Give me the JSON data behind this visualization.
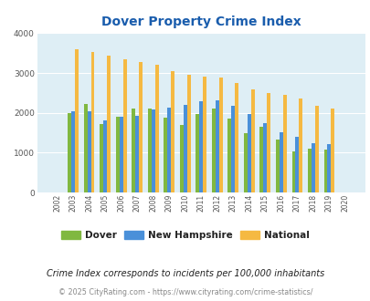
{
  "title": "Dover Property Crime Index",
  "years": [
    2002,
    2003,
    2004,
    2005,
    2006,
    2007,
    2008,
    2009,
    2010,
    2011,
    2012,
    2013,
    2014,
    2015,
    2016,
    2017,
    2018,
    2019,
    2020
  ],
  "dover": [
    0,
    2000,
    2220,
    1720,
    1900,
    2100,
    2100,
    1880,
    1700,
    1970,
    2100,
    1860,
    1490,
    1650,
    1330,
    1040,
    1100,
    1080,
    0
  ],
  "nh": [
    0,
    2050,
    2050,
    1820,
    1900,
    1920,
    2080,
    2140,
    2190,
    2290,
    2320,
    2180,
    1980,
    1740,
    1520,
    1400,
    1230,
    1210,
    0
  ],
  "national": [
    0,
    3600,
    3520,
    3430,
    3350,
    3280,
    3210,
    3050,
    2960,
    2920,
    2880,
    2750,
    2600,
    2490,
    2450,
    2370,
    2180,
    2110,
    0
  ],
  "dover_color": "#80b840",
  "nh_color": "#4a90d9",
  "national_color": "#f5b942",
  "bg_color": "#deeef5",
  "title_color": "#1a5dad",
  "grid_color": "#ffffff",
  "ylim": [
    0,
    4000
  ],
  "yticks": [
    0,
    1000,
    2000,
    3000,
    4000
  ],
  "subtitle": "Crime Index corresponds to incidents per 100,000 inhabitants",
  "footer": "© 2025 CityRating.com - https://www.cityrating.com/crime-statistics/",
  "legend_labels": [
    "Dover",
    "New Hampshire",
    "National"
  ],
  "bar_width": 0.22
}
